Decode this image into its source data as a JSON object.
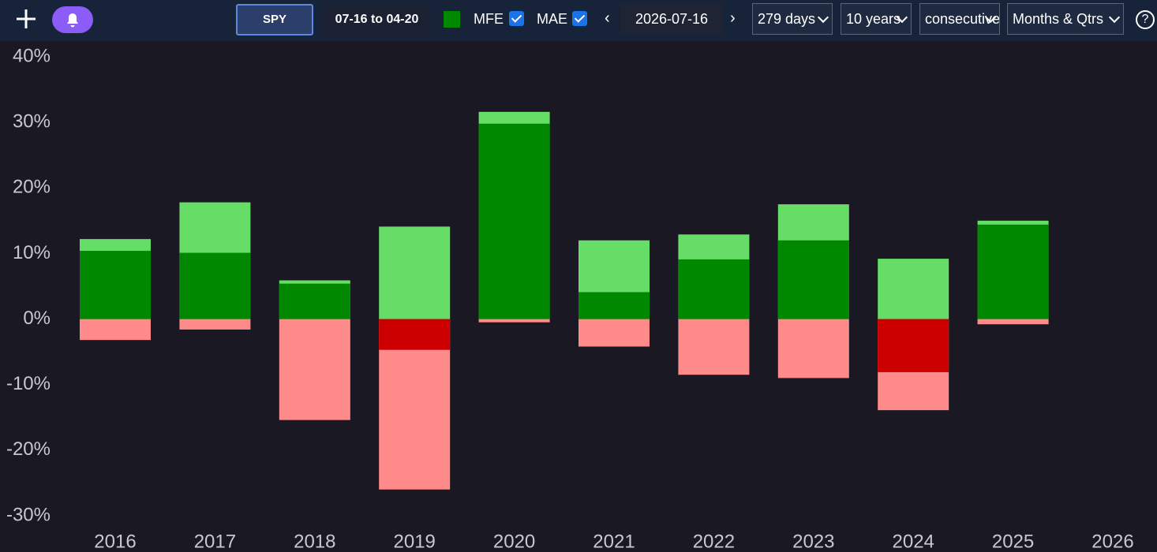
{
  "toolbar": {
    "ticker": "SPY",
    "range": "07-16 to 04-20",
    "date": "2026-07-16",
    "dropdowns": [
      "279 days",
      "10 years",
      "consecutive",
      "Months & Qtrs"
    ],
    "help": "?"
  },
  "chart_data": {
    "type": "bar",
    "categories": [
      "2016",
      "2017",
      "2018",
      "2019",
      "2020",
      "2021",
      "2022",
      "2023",
      "2024",
      "2025",
      "2026"
    ],
    "series": [
      {
        "name": "MFE",
        "color": "#66dd66",
        "values": [
          12.2,
          17.8,
          5.9,
          14.1,
          31.6,
          12.0,
          12.9,
          17.5,
          9.2,
          15.0,
          null
        ]
      },
      {
        "name": "MAE",
        "color": "#ff8a8a",
        "values": [
          -3.2,
          -1.6,
          -15.4,
          -26.0,
          -0.5,
          -4.2,
          -8.5,
          -9.0,
          -13.9,
          -0.8,
          null
        ]
      },
      {
        "color": "#008800",
        "negative_color": "#cc0000",
        "values": [
          10.4,
          10.1,
          5.4,
          -4.7,
          29.8,
          4.1,
          9.1,
          12.0,
          -8.1,
          14.4,
          null
        ]
      }
    ],
    "ylim": [
      -30,
      40
    ],
    "yticks": [
      {
        "value": -30,
        "label": "-30%"
      },
      {
        "value": -20,
        "label": "-20%"
      },
      {
        "value": -10,
        "label": "-10%"
      },
      {
        "value": 0,
        "label": "0%"
      },
      {
        "value": 10,
        "label": "10%"
      },
      {
        "value": 20,
        "label": "20%"
      },
      {
        "value": 30,
        "label": "30%"
      },
      {
        "value": 40,
        "label": "40%"
      }
    ]
  }
}
